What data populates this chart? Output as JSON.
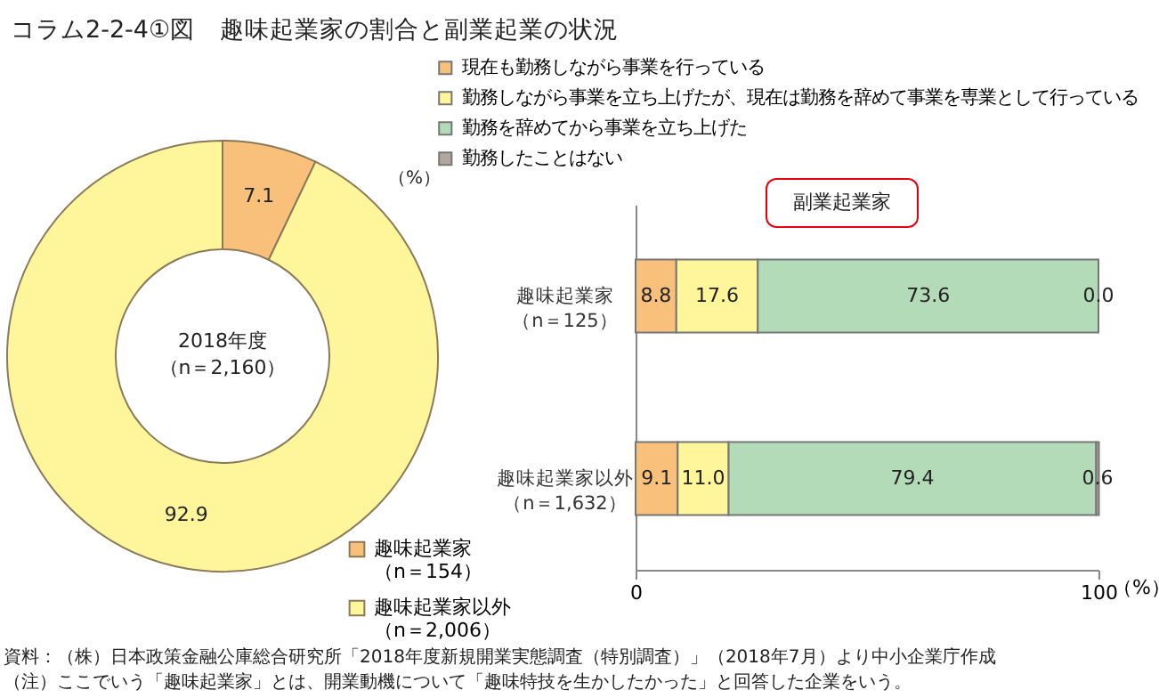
{
  "chart_data": [
    {
      "type": "donut",
      "title": "コラム2-2-4①図　趣味起業家の割合と副業起業の状況",
      "categories": [
        "趣味起業家（n＝154）",
        "趣味起業家以外（n＝2,006）"
      ],
      "values": [
        7.1,
        92.9
      ],
      "colors": [
        "#f8c07a",
        "#fff69c"
      ],
      "data_labels": true,
      "legend": "bottom right",
      "annotations": [
        "2018年度（n＝2,160）",
        "（%）"
      ]
    },
    {
      "type": "bar",
      "orientation": "horizontal",
      "stacked": true,
      "categories": [
        "趣味起業家（n＝125）",
        "趣味起業家以外（n＝1,632）"
      ],
      "series": [
        {
          "name": "現在も勤務しながら事業を行っている",
          "color": "#f8c07a",
          "values": [
            8.8,
            9.1
          ],
          "value_labels": [
            "8.8",
            "9.1"
          ]
        },
        {
          "name": "勤務しながら事業を立ち上げたが、現在は勤務を辞めて事業を専業として行っている",
          "color": "#fff69c",
          "values": [
            17.6,
            11.0
          ],
          "value_labels": [
            "17.6",
            "11.0"
          ]
        },
        {
          "name": "勤務を辞めてから事業を立ち上げた",
          "color": "#b3dbb8",
          "values": [
            73.6,
            79.4
          ],
          "value_labels": [
            "73.6",
            "79.4"
          ]
        },
        {
          "name": "勤務したことはない",
          "color": "#b0aa9e",
          "values": [
            0.0,
            0.6
          ],
          "value_labels": [
            "0.0",
            "0.6"
          ]
        }
      ],
      "xlim": [
        0,
        100
      ],
      "xticks": [
        0,
        100
      ],
      "xlabel": "（%）",
      "grid": false,
      "legend": "top",
      "annotations": [
        "副業起業家",
        "資料：（株）日本政策金融公庫総合研究所「2018年度新規開業実態調査（特別調査）」（2018年7月）より中小企業庁作成",
        "（注）ここでいう「趣味起業家」とは、開業動機について「趣味特技を生かしたかった」と回答した企業をいう。"
      ]
    }
  ]
}
